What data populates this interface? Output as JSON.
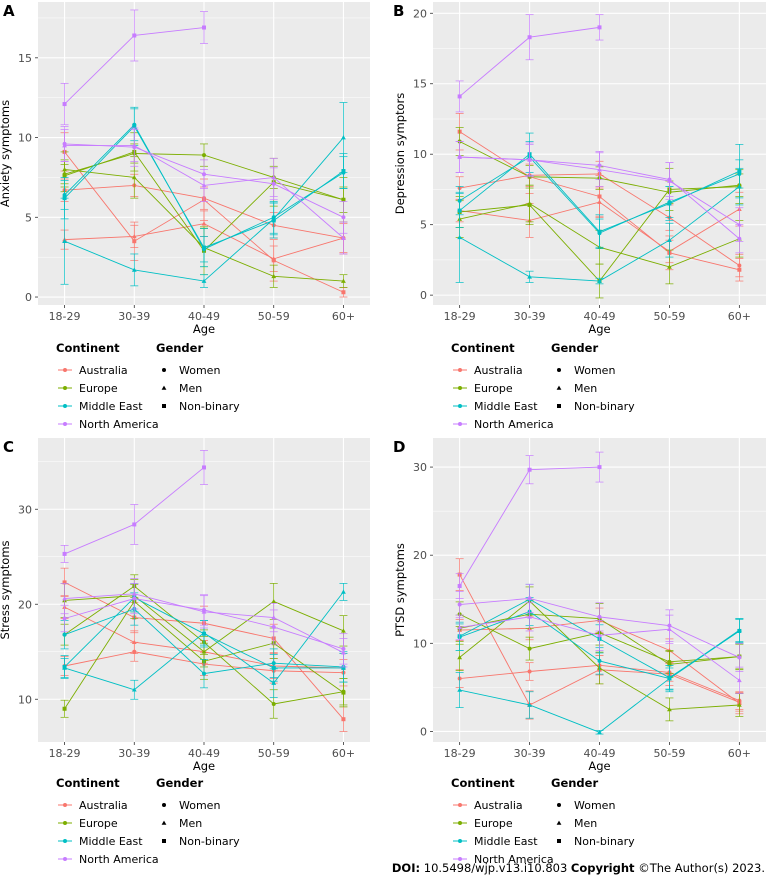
{
  "footer": {
    "doi_label": "DOI:",
    "doi_value": "10.5498/wjp.v13.i10.803",
    "copyright_label": "Copyright",
    "copyright_text": "©The Author(s) 2023."
  },
  "legend": {
    "continent_title": "Continent",
    "gender_title": "Gender",
    "continents": [
      "Australia",
      "Europe",
      "Middle East",
      "North America"
    ],
    "genders": [
      "Women",
      "Men",
      "Non-binary"
    ]
  },
  "colors": {
    "Australia": "#F8766D",
    "Europe": "#7CAE00",
    "Middle East": "#00BFC4",
    "North America": "#C77CFF",
    "panel_bg": "#EBEBEB",
    "grid": "#FFFFFF"
  },
  "chart_data": [
    {
      "type": "line",
      "panel": "A",
      "xlabel": "Age",
      "ylabel": "Anxiety symptoms",
      "categories": [
        "18-29",
        "30-39",
        "40-49",
        "50-59",
        "60+"
      ],
      "ylim": [
        -0.5,
        18.5
      ],
      "yticks": [
        0,
        5,
        10,
        15
      ],
      "series": [
        {
          "continent": "Australia",
          "gender": "Women",
          "values": [
            6.7,
            7.0,
            6.2,
            4.5,
            3.7
          ],
          "err": [
            0.7,
            0.7,
            0.7,
            0.8,
            0.9
          ]
        },
        {
          "continent": "Australia",
          "gender": "Men",
          "values": [
            3.6,
            3.8,
            4.6,
            2.4,
            3.7
          ],
          "err": [
            0.6,
            0.7,
            0.8,
            0.8,
            1.0
          ]
        },
        {
          "continent": "Australia",
          "gender": "Non-binary",
          "values": [
            9.1,
            3.5,
            6.1,
            2.3,
            0.3
          ],
          "err": [
            1.2,
            1.2,
            1.3,
            1.3,
            0.3
          ]
        },
        {
          "continent": "Europe",
          "gender": "Women",
          "values": [
            7.7,
            9.0,
            8.9,
            7.5,
            6.1
          ],
          "err": [
            0.6,
            0.6,
            0.7,
            0.7,
            0.8
          ]
        },
        {
          "continent": "Europe",
          "gender": "Men",
          "values": [
            8.0,
            7.5,
            3.1,
            1.3,
            1.0
          ],
          "err": [
            1.1,
            1.3,
            1.2,
            0.7,
            0.4
          ]
        },
        {
          "continent": "Europe",
          "gender": "Non-binary",
          "values": [
            7.6,
            9.1,
            2.9,
            7.2,
            6.1
          ],
          "err": [
            1.0,
            1.2,
            1.5,
            1.5,
            1.4
          ]
        },
        {
          "continent": "Middle East",
          "gender": "Women",
          "values": [
            6.4,
            10.8,
            3.0,
            5.0,
            7.8
          ],
          "err": [
            0.9,
            1.0,
            0.8,
            1.0,
            1.0
          ]
        },
        {
          "continent": "Middle East",
          "gender": "Men",
          "values": [
            3.5,
            1.7,
            1.0,
            4.9,
            10.0
          ],
          "err": [
            2.7,
            1.0,
            0.4,
            1.0,
            2.2
          ]
        },
        {
          "continent": "Middle East",
          "gender": "Non-binary",
          "values": [
            6.2,
            10.7,
            3.1,
            4.8,
            7.9
          ],
          "err": [
            1.3,
            1.2,
            1.2,
            1.1,
            1.1
          ]
        },
        {
          "continent": "North America",
          "gender": "Women",
          "values": [
            9.6,
            9.4,
            7.7,
            7.1,
            5.0
          ],
          "err": [
            1.1,
            1.2,
            0.9,
            1.0,
            1.0
          ]
        },
        {
          "continent": "North America",
          "gender": "Men",
          "values": [
            9.5,
            9.5,
            7.0,
            7.5,
            3.7
          ],
          "err": [
            1.0,
            1.0,
            1.0,
            1.2,
            1.0
          ]
        },
        {
          "continent": "North America",
          "gender": "Non-binary",
          "values": [
            12.1,
            16.4,
            16.9,
            null,
            null
          ],
          "err": [
            1.3,
            1.6,
            1.0,
            null,
            null
          ]
        }
      ]
    },
    {
      "type": "line",
      "panel": "B",
      "xlabel": "Age",
      "ylabel": "Depression symptors",
      "categories": [
        "18-29",
        "30-39",
        "40-49",
        "50-59",
        "60+"
      ],
      "ylim": [
        -0.7,
        20.8
      ],
      "yticks": [
        0,
        5,
        10,
        15,
        20
      ],
      "series": [
        {
          "continent": "Australia",
          "gender": "Women",
          "values": [
            7.6,
            8.5,
            8.6,
            5.5,
            2.1
          ],
          "err": [
            0.8,
            0.8,
            0.9,
            0.9,
            0.8
          ]
        },
        {
          "continent": "Australia",
          "gender": "Men",
          "values": [
            6.0,
            5.3,
            6.6,
            3.1,
            6.1
          ],
          "err": [
            0.8,
            1.2,
            1.0,
            0.8,
            1.2
          ]
        },
        {
          "continent": "Australia",
          "gender": "Non-binary",
          "values": [
            11.6,
            8.4,
            7.0,
            3.0,
            1.8
          ],
          "err": [
            1.3,
            1.2,
            1.5,
            1.2,
            0.8
          ]
        },
        {
          "continent": "Europe",
          "gender": "Women",
          "values": [
            10.9,
            8.4,
            8.3,
            7.3,
            7.8
          ],
          "err": [
            1.0,
            0.8,
            0.8,
            0.8,
            0.8
          ]
        },
        {
          "continent": "Europe",
          "gender": "Men",
          "values": [
            5.4,
            6.5,
            3.4,
            2.0,
            4.0
          ],
          "err": [
            1.3,
            1.3,
            1.2,
            1.2,
            1.3
          ]
        },
        {
          "continent": "Europe",
          "gender": "Non-binary",
          "values": [
            5.9,
            6.4,
            1.0,
            7.5,
            7.7
          ],
          "err": [
            1.1,
            1.4,
            1.2,
            1.5,
            1.2
          ]
        },
        {
          "continent": "Middle East",
          "gender": "Women",
          "values": [
            6.7,
            9.8,
            4.4,
            6.6,
            8.6
          ],
          "err": [
            1.0,
            1.1,
            1.0,
            1.1,
            1.0
          ]
        },
        {
          "continent": "Middle East",
          "gender": "Men",
          "values": [
            4.1,
            1.3,
            1.0,
            3.9,
            7.7
          ],
          "err": [
            3.2,
            0.4,
            0.2,
            1.2,
            1.3
          ]
        },
        {
          "continent": "Middle East",
          "gender": "Non-binary",
          "values": [
            6.0,
            10.0,
            4.5,
            6.5,
            8.8
          ],
          "err": [
            1.2,
            1.5,
            1.2,
            1.2,
            1.9
          ]
        },
        {
          "continent": "North America",
          "gender": "Women",
          "values": [
            9.8,
            9.6,
            9.2,
            8.2,
            4.0
          ],
          "err": [
            1.1,
            1.2,
            1.0,
            1.2,
            1.0
          ]
        },
        {
          "continent": "North America",
          "gender": "Men",
          "values": [
            9.8,
            9.6,
            8.9,
            8.1,
            5.0
          ],
          "err": [
            1.1,
            1.1,
            1.2,
            1.3,
            1.2
          ]
        },
        {
          "continent": "North America",
          "gender": "Non-binary",
          "values": [
            14.1,
            18.3,
            19.0,
            null,
            null
          ],
          "err": [
            1.1,
            1.6,
            0.9,
            null,
            null
          ]
        }
      ]
    },
    {
      "type": "line",
      "panel": "C",
      "xlabel": "Age",
      "ylabel": "Stress symptoms",
      "categories": [
        "18-29",
        "30-39",
        "40-49",
        "50-59",
        "60+"
      ],
      "ylim": [
        5.5,
        37.5
      ],
      "yticks": [
        10,
        20,
        30
      ],
      "series": [
        {
          "continent": "Australia",
          "gender": "Women",
          "values": [
            13.5,
            15.0,
            13.7,
            13.0,
            12.8
          ],
          "err": [
            1.0,
            1.0,
            1.2,
            1.3,
            1.4
          ]
        },
        {
          "continent": "Australia",
          "gender": "Men",
          "values": [
            19.7,
            16.0,
            15.0,
            13.5,
            13.3
          ],
          "err": [
            1.2,
            1.2,
            1.2,
            1.3,
            1.5
          ]
        },
        {
          "continent": "Australia",
          "gender": "Non-binary",
          "values": [
            22.3,
            18.6,
            18.0,
            16.4,
            7.9
          ],
          "err": [
            1.5,
            1.6,
            1.8,
            1.5,
            1.3
          ]
        },
        {
          "continent": "Europe",
          "gender": "Women",
          "values": [
            16.8,
            21.9,
            16.0,
            9.5,
            10.8
          ],
          "err": [
            1.1,
            1.2,
            1.3,
            1.5,
            1.4
          ]
        },
        {
          "continent": "Europe",
          "gender": "Men",
          "values": [
            20.4,
            20.9,
            15.0,
            20.3,
            17.2
          ],
          "err": [
            1.8,
            1.7,
            1.6,
            1.9,
            1.6
          ]
        },
        {
          "continent": "Europe",
          "gender": "Non-binary",
          "values": [
            9.0,
            20.3,
            14.0,
            15.9,
            10.7
          ],
          "err": [
            0.9,
            1.8,
            1.9,
            1.6,
            1.5
          ]
        },
        {
          "continent": "Middle East",
          "gender": "Women",
          "values": [
            16.8,
            19.5,
            12.7,
            13.8,
            13.4
          ],
          "err": [
            1.5,
            1.7,
            1.5,
            1.5,
            1.6
          ]
        },
        {
          "continent": "Middle East",
          "gender": "Men",
          "values": [
            13.3,
            11.0,
            17.0,
            11.7,
            21.3
          ],
          "err": [
            1.0,
            1.0,
            1.3,
            1.5,
            0.9
          ]
        },
        {
          "continent": "Middle East",
          "gender": "Non-binary",
          "values": [
            13.4,
            20.7,
            16.9,
            13.3,
            13.3
          ],
          "err": [
            1.2,
            1.5,
            1.4,
            1.4,
            1.5
          ]
        },
        {
          "continent": "North America",
          "gender": "Women",
          "values": [
            18.5,
            20.6,
            19.4,
            17.6,
            15.3
          ],
          "err": [
            1.4,
            1.6,
            1.6,
            1.8,
            1.6
          ]
        },
        {
          "continent": "North America",
          "gender": "Men",
          "values": [
            20.6,
            21.1,
            19.2,
            18.6,
            14.9
          ],
          "err": [
            1.6,
            1.6,
            1.7,
            1.5,
            1.5
          ]
        },
        {
          "continent": "North America",
          "gender": "Non-binary",
          "values": [
            25.3,
            28.4,
            34.4,
            null,
            null
          ],
          "err": [
            0.9,
            2.1,
            1.8,
            null,
            null
          ]
        }
      ]
    },
    {
      "type": "line",
      "panel": "D",
      "xlabel": "Age",
      "ylabel": "PTSD symptoms",
      "categories": [
        "18-29",
        "30-39",
        "40-49",
        "50-59",
        "60+"
      ],
      "ylim": [
        -1.2,
        33.3
      ],
      "yticks": [
        0,
        10,
        20,
        30
      ],
      "series": [
        {
          "continent": "Australia",
          "gender": "Women",
          "values": [
            6.0,
            6.8,
            7.5,
            6.7,
            3.5
          ],
          "err": [
            1.0,
            1.0,
            1.1,
            1.0,
            1.0
          ]
        },
        {
          "continent": "Australia",
          "gender": "Men",
          "values": [
            11.5,
            11.7,
            12.6,
            9.2,
            3.2
          ],
          "err": [
            1.2,
            1.3,
            1.4,
            1.3,
            1.2
          ]
        },
        {
          "continent": "Australia",
          "gender": "Non-binary",
          "values": [
            17.8,
            3.0,
            7.0,
            6.5,
            3.3
          ],
          "err": [
            1.8,
            1.6,
            1.6,
            1.3,
            1.0
          ]
        },
        {
          "continent": "Europe",
          "gender": "Women",
          "values": [
            13.3,
            9.4,
            11.2,
            7.9,
            8.5
          ],
          "err": [
            1.4,
            1.3,
            1.4,
            1.3,
            1.5
          ]
        },
        {
          "continent": "Europe",
          "gender": "Men",
          "values": [
            8.4,
            14.8,
            7.2,
            2.5,
            3.0
          ],
          "err": [
            1.5,
            1.6,
            1.8,
            1.3,
            1.3
          ]
        },
        {
          "continent": "Europe",
          "gender": "Non-binary",
          "values": [
            11.7,
            13.3,
            12.8,
            7.6,
            8.5
          ],
          "err": [
            1.5,
            1.6,
            1.7,
            1.5,
            1.4
          ]
        },
        {
          "continent": "Middle East",
          "gender": "Women",
          "values": [
            10.7,
            13.6,
            8.0,
            6.0,
            11.4
          ],
          "err": [
            1.5,
            1.6,
            1.5,
            1.5,
            1.3
          ]
        },
        {
          "continent": "Middle East",
          "gender": "Men",
          "values": [
            4.7,
            3.0,
            -0.1,
            6.0,
            11.5
          ],
          "err": [
            2.0,
            1.5,
            0.2,
            1.2,
            1.3
          ]
        },
        {
          "continent": "Middle East",
          "gender": "Non-binary",
          "values": [
            10.8,
            15.0,
            10.5,
            6.1,
            11.4
          ],
          "err": [
            1.6,
            1.7,
            1.6,
            1.4,
            1.4
          ]
        },
        {
          "continent": "North America",
          "gender": "Women",
          "values": [
            14.4,
            15.1,
            13.0,
            12.0,
            8.4
          ],
          "err": [
            1.5,
            1.6,
            1.6,
            1.8,
            1.6
          ]
        },
        {
          "continent": "North America",
          "gender": "Men",
          "values": [
            11.8,
            13.0,
            10.9,
            11.6,
            5.8
          ],
          "err": [
            1.4,
            1.6,
            1.7,
            1.6,
            1.5
          ]
        },
        {
          "continent": "North America",
          "gender": "Non-binary",
          "values": [
            16.5,
            29.7,
            30.0,
            null,
            null
          ],
          "err": [
            1.4,
            1.6,
            1.7,
            null,
            null
          ]
        }
      ]
    }
  ]
}
